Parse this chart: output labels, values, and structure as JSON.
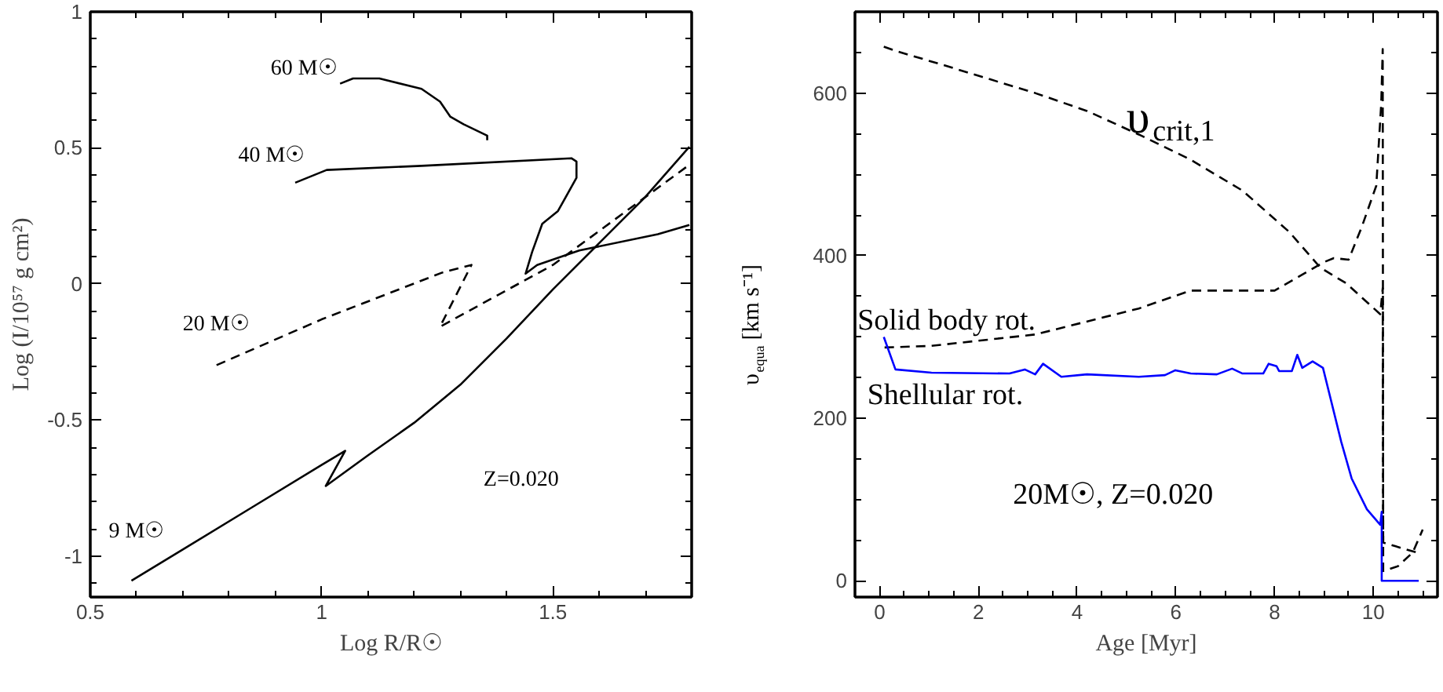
{
  "chart_data": [
    {
      "type": "line",
      "xlabel": "Log R/R☉",
      "ylabel": "Log (I/10⁵⁷ g cm²)",
      "xlim": [
        0.5,
        1.8
      ],
      "ylim": [
        -1.15,
        1
      ],
      "xticks": [
        0.5,
        {
          "value": 0.6,
          "label": null
        },
        {
          "value": 0.7,
          "label": null
        },
        {
          "value": 0.8,
          "label": null
        },
        {
          "value": 0.9,
          "label": null
        },
        1,
        {
          "value": 1.1,
          "label": null
        },
        {
          "value": 1.2,
          "label": null
        },
        {
          "value": 1.3,
          "label": null
        },
        {
          "value": 1.4,
          "label": null
        },
        1.5,
        {
          "value": 1.6,
          "label": null
        },
        {
          "value": 1.7,
          "label": null
        }
      ],
      "yticks": [
        {
          "value": -1.1,
          "label": null
        },
        -1,
        {
          "value": -0.9,
          "label": null
        },
        {
          "value": -0.8,
          "label": null
        },
        {
          "value": -0.7,
          "label": null
        },
        {
          "value": -0.6,
          "label": null
        },
        -0.5,
        {
          "value": -0.4,
          "label": null
        },
        {
          "value": -0.3,
          "label": null
        },
        {
          "value": -0.2,
          "label": null
        },
        {
          "value": -0.1,
          "label": null
        },
        0,
        {
          "value": 0.1,
          "label": null
        },
        {
          "value": 0.2,
          "label": null
        },
        {
          "value": 0.3,
          "label": null
        },
        {
          "value": 0.4,
          "label": null
        },
        0.5,
        {
          "value": 0.6,
          "label": null
        },
        {
          "value": 0.7,
          "label": null
        },
        {
          "value": 0.8,
          "label": null
        },
        {
          "value": 0.9,
          "label": null
        },
        1
      ],
      "annotations": [
        "Z=0.020"
      ],
      "series": [
        {
          "name": "60 M☉",
          "color": "#000000",
          "line_style": "solid",
          "x": [
            1.04,
            1.068,
            1.125,
            1.216,
            1.256,
            1.278,
            1.307,
            1.358,
            1.358
          ],
          "values": [
            0.736,
            0.755,
            0.755,
            0.717,
            0.67,
            0.615,
            0.587,
            0.545,
            0.528
          ]
        },
        {
          "name": "40 M☉",
          "color": "#000000",
          "line_style": "solid",
          "x": [
            0.943,
            1.011,
            1.216,
            1.54,
            1.551,
            1.551,
            1.511,
            1.477,
            1.455,
            1.441,
            1.466,
            1.557,
            1.727,
            1.795
          ],
          "values": [
            0.372,
            0.419,
            0.434,
            0.462,
            0.45,
            0.39,
            0.268,
            0.221,
            0.117,
            0.038,
            0.07,
            0.123,
            0.183,
            0.217
          ]
        },
        {
          "name": "20 M☉",
          "color": "#000000",
          "line_style": "dashed",
          "x": [
            0.773,
            1.0,
            1.261,
            1.324,
            1.256,
            1.5,
            1.795
          ],
          "values": [
            -0.298,
            -0.13,
            0.042,
            0.07,
            -0.157,
            0.07,
            0.438
          ]
        },
        {
          "name": "9 M☉",
          "color": "#000000",
          "line_style": "solid",
          "x": [
            0.589,
            0.7,
            0.85,
            1.0,
            1.051,
            1.009,
            1.1,
            1.2,
            1.3,
            1.4,
            1.5,
            1.6,
            1.7,
            1.795
          ],
          "values": [
            -1.09,
            -0.975,
            -0.82,
            -0.665,
            -0.613,
            -0.742,
            -0.63,
            -0.51,
            -0.37,
            -0.2,
            -0.02,
            0.15,
            0.32,
            0.504
          ]
        }
      ]
    },
    {
      "type": "line",
      "xlabel": "Age [Myr]",
      "ylabel": "υ$_{equa}$ [km s⁻¹]",
      "xlim": [
        -0.5,
        11.3
      ],
      "ylim": [
        -20,
        700
      ],
      "xticks": [
        0,
        {
          "value": 0.5,
          "label": null
        },
        {
          "value": 1,
          "label": null
        },
        {
          "value": 1.5,
          "label": null
        },
        2,
        {
          "value": 2.5,
          "label": null
        },
        {
          "value": 3,
          "label": null
        },
        {
          "value": 3.5,
          "label": null
        },
        4,
        {
          "value": 4.5,
          "label": null
        },
        {
          "value": 5,
          "label": null
        },
        {
          "value": 5.5,
          "label": null
        },
        6,
        {
          "value": 6.5,
          "label": null
        },
        {
          "value": 7,
          "label": null
        },
        {
          "value": 7.5,
          "label": null
        },
        8,
        {
          "value": 8.5,
          "label": null
        },
        {
          "value": 9,
          "label": null
        },
        {
          "value": 9.5,
          "label": null
        },
        10,
        {
          "value": 10.5,
          "label": null
        },
        {
          "value": 11,
          "label": null
        }
      ],
      "yticks": [
        0,
        {
          "value": 50,
          "label": null
        },
        {
          "value": 100,
          "label": null
        },
        {
          "value": 150,
          "label": null
        },
        200,
        {
          "value": 250,
          "label": null
        },
        {
          "value": 300,
          "label": null
        },
        {
          "value": 350,
          "label": null
        },
        400,
        {
          "value": 450,
          "label": null
        },
        {
          "value": 500,
          "label": null
        },
        {
          "value": 550,
          "label": null
        },
        600,
        {
          "value": 650,
          "label": null
        }
      ],
      "annotations": [
        "20M☉, Z=0.020"
      ],
      "series": [
        {
          "name": "υ$_{crit,1}$",
          "color": "#000000",
          "line_style": "dashed",
          "x": [
            0.084,
            0.32,
            1.26,
            3.15,
            4.2,
            5.25,
            6.3,
            7.35,
            8.3,
            8.93,
            9.45,
            10.14,
            10.19,
            10.2,
            10.87
          ],
          "values": [
            657,
            652,
            635,
            600,
            578,
            549,
            518,
            480,
            429,
            385,
            366,
            328,
            360,
            47,
            35
          ]
        },
        {
          "name": "Solid body rot.",
          "color": "#000000",
          "line_style": "dashed",
          "x": [
            0.1,
            1.05,
            3.15,
            5.25,
            6.3,
            8.0,
            9.0,
            9.2,
            9.5,
            9.77,
            10.06,
            10.16,
            10.19,
            10.2,
            10.5,
            10.8,
            11.0
          ],
          "values": [
            287,
            289,
            303,
            335,
            357,
            357,
            392,
            397,
            395,
            436,
            486,
            587,
            654,
            12,
            18,
            35,
            63
          ]
        },
        {
          "name": "Shellular rot.",
          "color": "#0000ff",
          "line_style": "solid",
          "x": [
            0.084,
            0.32,
            1.05,
            2.63,
            2.94,
            3.15,
            3.31,
            3.68,
            4.2,
            5.25,
            5.78,
            5.99,
            6.3,
            6.83,
            7.14,
            7.35,
            7.77,
            7.88,
            8.04,
            8.09,
            8.35,
            8.46,
            8.56,
            8.77,
            8.98,
            9.35,
            9.56,
            9.87,
            10.14,
            10.17,
            10.17,
            10.92
          ],
          "values": [
            300,
            260,
            256,
            255,
            260,
            254,
            267,
            251,
            254,
            251,
            253,
            259,
            255,
            254,
            261,
            255,
            255,
            267,
            264,
            258,
            258,
            278,
            262,
            270,
            262,
            171,
            126,
            88,
            69,
            85,
            0,
            0
          ]
        }
      ]
    }
  ]
}
